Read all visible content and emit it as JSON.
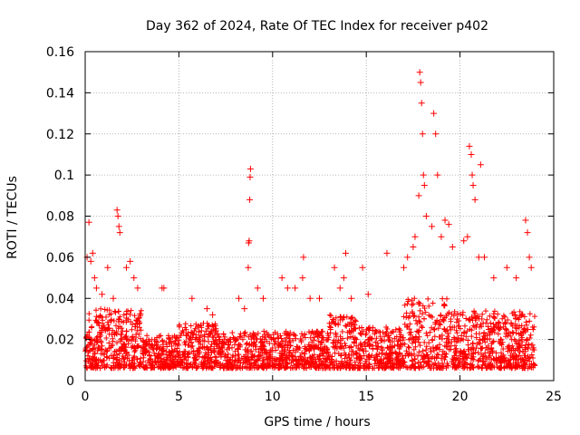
{
  "chart_data": {
    "type": "scatter",
    "title": "Day 362 of 2024, Rate Of TEC Index for receiver p402",
    "xlabel": "GPS time / hours",
    "ylabel": "ROTI / TECUs",
    "xlim": [
      0,
      25
    ],
    "ylim": [
      0,
      0.16
    ],
    "xticks": [
      0,
      5,
      10,
      15,
      20,
      25
    ],
    "yticks": [
      0,
      0.02,
      0.04,
      0.06,
      0.08,
      0.1,
      0.12,
      0.14,
      0.16
    ],
    "xtick_labels": [
      "0",
      "5",
      "10",
      "15",
      "20",
      "25"
    ],
    "ytick_labels": [
      "0",
      "0.02",
      "0.04",
      "0.06",
      "0.08",
      "0.1",
      "0.12",
      "0.14",
      "0.16"
    ],
    "grid": true,
    "marker": "+",
    "series_color": "#ff0000",
    "series": [
      {
        "name": "ROTI",
        "x": [
          0.1,
          0.2,
          0.3,
          0.4,
          0.5,
          0.6,
          0.9,
          1.2,
          1.5,
          1.7,
          1.75,
          1.8,
          1.85,
          2.2,
          2.4,
          2.6,
          2.8,
          4.1,
          4.2,
          5.7,
          6.5,
          6.8,
          8.2,
          8.5,
          8.7,
          8.72,
          8.75,
          8.78,
          8.8,
          8.82,
          9.2,
          9.5,
          10.5,
          10.8,
          11.2,
          11.6,
          11.65,
          12.0,
          12.5,
          13.3,
          13.6,
          13.8,
          13.9,
          14.2,
          14.8,
          15.1,
          16.1,
          17.0,
          17.2,
          17.5,
          17.6,
          17.8,
          17.85,
          17.9,
          17.95,
          18.0,
          18.05,
          18.1,
          18.2,
          18.5,
          18.6,
          18.7,
          18.8,
          19.0,
          19.2,
          19.4,
          19.6,
          20.2,
          20.4,
          20.5,
          20.6,
          20.65,
          20.7,
          20.8,
          21.0,
          21.1,
          21.3,
          21.8,
          22.5,
          23.0,
          23.5,
          23.6,
          23.7,
          23.8
        ],
        "y": [
          0.06,
          0.077,
          0.058,
          0.062,
          0.05,
          0.045,
          0.042,
          0.055,
          0.04,
          0.083,
          0.08,
          0.075,
          0.072,
          0.055,
          0.058,
          0.05,
          0.045,
          0.045,
          0.045,
          0.04,
          0.035,
          0.032,
          0.04,
          0.035,
          0.055,
          0.067,
          0.068,
          0.088,
          0.099,
          0.103,
          0.045,
          0.04,
          0.05,
          0.045,
          0.045,
          0.05,
          0.06,
          0.04,
          0.04,
          0.055,
          0.045,
          0.05,
          0.062,
          0.04,
          0.055,
          0.042,
          0.062,
          0.055,
          0.06,
          0.065,
          0.07,
          0.09,
          0.15,
          0.145,
          0.135,
          0.12,
          0.1,
          0.095,
          0.08,
          0.075,
          0.13,
          0.12,
          0.1,
          0.07,
          0.078,
          0.076,
          0.065,
          0.068,
          0.07,
          0.114,
          0.11,
          0.1,
          0.095,
          0.088,
          0.06,
          0.105,
          0.06,
          0.05,
          0.055,
          0.05,
          0.078,
          0.072,
          0.06,
          0.055
        ]
      }
    ]
  }
}
